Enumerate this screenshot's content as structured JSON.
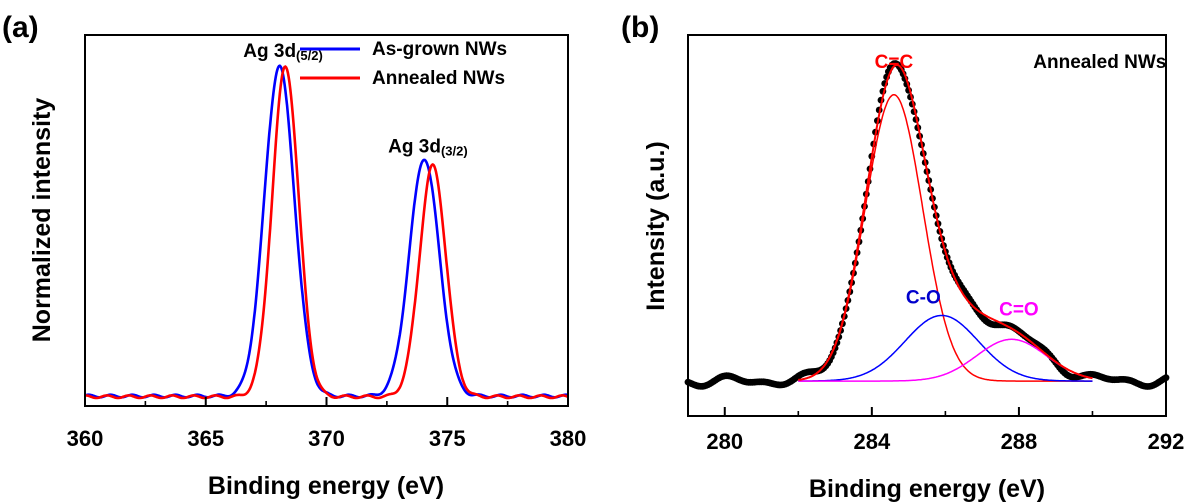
{
  "chart_data": [
    {
      "panel": "(a)",
      "type": "line",
      "xlabel": "Binding energy (eV)",
      "ylabel": "Normalized intensity",
      "xlim": [
        360,
        380
      ],
      "ylim": [
        0,
        1.07
      ],
      "xticks": [
        "360",
        "365",
        "370",
        "375",
        "380"
      ],
      "legend": "top-right",
      "grid": false,
      "annotations": [
        {
          "main": "Ag 3d",
          "sub": "(5/2)",
          "x": 368.2,
          "y": 1.04
        },
        {
          "main": "Ag 3d",
          "sub": "(3/2)",
          "x": 374.2,
          "y": 0.75
        }
      ],
      "series": [
        {
          "name": "As-grown NWs",
          "color": "#0000ff",
          "peaks": [
            {
              "center": 368.05,
              "height": 1.0,
              "sigma": 0.62
            },
            {
              "center": 374.05,
              "height": 0.72,
              "sigma": 0.62
            }
          ],
          "baseline": 0.012
        },
        {
          "name": "Annealed NWs",
          "color": "#ff0000",
          "peaks": [
            {
              "center": 368.3,
              "height": 1.0,
              "sigma": 0.55
            },
            {
              "center": 374.4,
              "height": 0.7,
              "sigma": 0.55
            }
          ],
          "baseline": 0.01
        }
      ]
    },
    {
      "panel": "(b)",
      "type": "line",
      "xlabel": "Binding energy (eV)",
      "ylabel": "Intensity (a.u.)",
      "xlim": [
        279,
        292
      ],
      "ylim": [
        -0.05,
        1.12
      ],
      "xticks": [
        "280",
        "284",
        "288",
        "292"
      ],
      "grid": false,
      "annotations": [
        {
          "text": "Annealed NWs",
          "color": "#000000",
          "x": 290.2,
          "y": 1.05
        },
        {
          "text": "C=C",
          "color": "#ff0000",
          "x": 284.6,
          "y": 1.05
        },
        {
          "text": "C-O",
          "color": "#0000cc",
          "x": 285.4,
          "y": 0.26
        },
        {
          "text": "C=O",
          "color": "#ff00ff",
          "x": 288.0,
          "y": 0.22
        }
      ],
      "components": [
        {
          "label": "C=C",
          "color": "#ff0000",
          "center": 284.6,
          "height": 0.96,
          "sigma": 0.78,
          "range": [
            282,
            290
          ]
        },
        {
          "label": "C-O",
          "color": "#0000ff",
          "center": 285.9,
          "height": 0.22,
          "sigma": 1.0,
          "range": [
            282,
            290
          ]
        },
        {
          "label": "C=O",
          "color": "#ff00ff",
          "center": 287.8,
          "height": 0.14,
          "sigma": 0.95,
          "range": [
            282,
            290
          ]
        }
      ],
      "experimental_color": "#000000",
      "fit_color": "#ff0000"
    }
  ]
}
